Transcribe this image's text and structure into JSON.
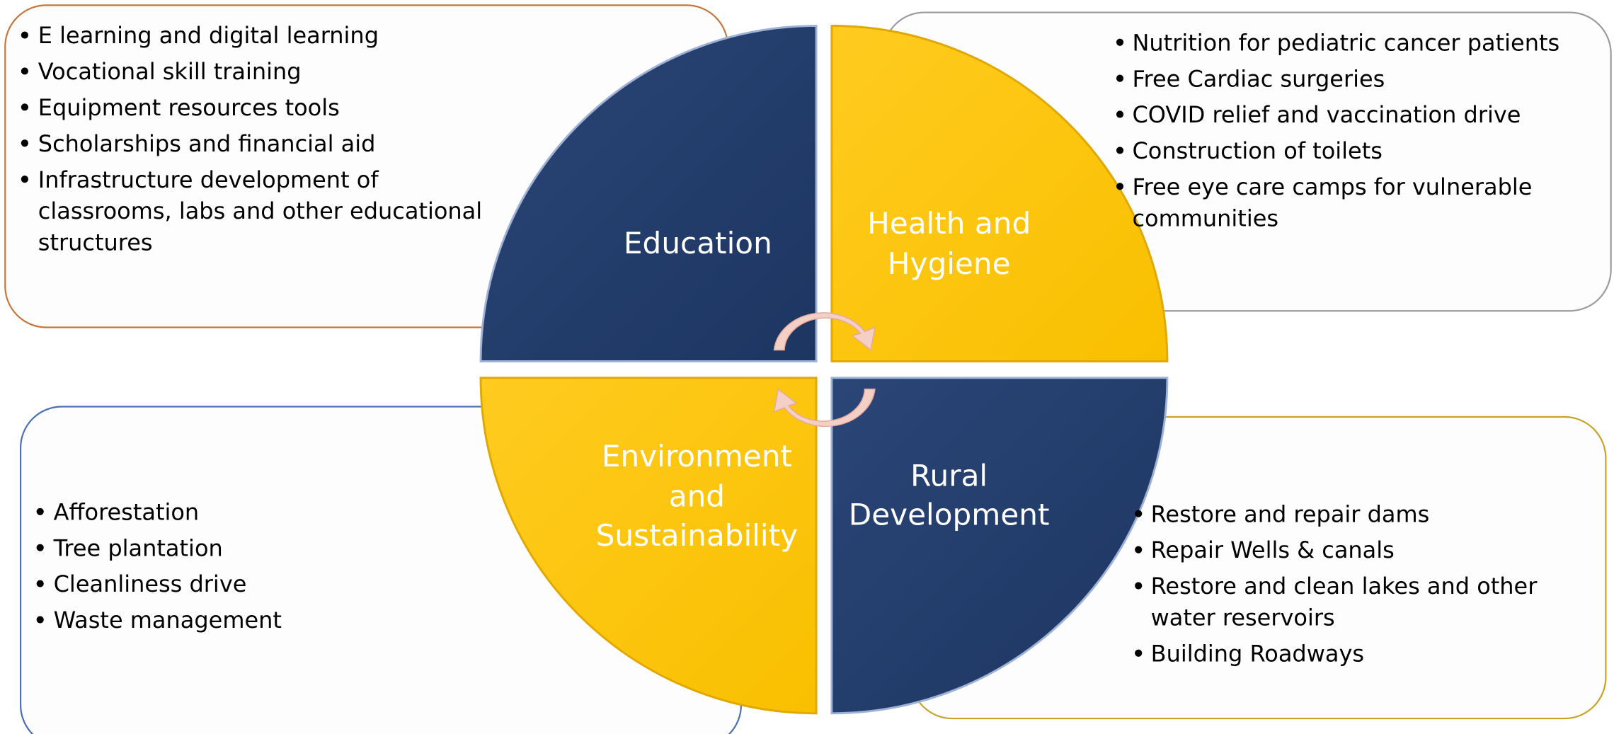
{
  "quadrants": [
    {
      "label": [
        "Education"
      ],
      "bullets": [
        [
          "E learning and digital learning"
        ],
        [
          "Vocational skill training"
        ],
        [
          "Equipment resources tools"
        ],
        [
          "Scholarships and financial aid"
        ],
        [
          "Infrastructure development of",
          "classrooms, labs and other educational",
          "structures"
        ]
      ]
    },
    {
      "label": [
        "Health and",
        "Hygiene"
      ],
      "bullets": [
        [
          "Nutrition for pediatric cancer patients"
        ],
        [
          "Free Cardiac surgeries"
        ],
        [
          "COVID relief and vaccination drive"
        ],
        [
          "Construction of toilets"
        ],
        [
          "Free eye care camps for vulnerable",
          "communities"
        ]
      ]
    },
    {
      "label": [
        "Environment",
        "and",
        "Sustainability"
      ],
      "bullets": [
        [
          "Afforestation"
        ],
        [
          "Tree plantation"
        ],
        [
          "Cleanliness drive"
        ],
        [
          "Waste management"
        ]
      ]
    },
    {
      "label": [
        "Rural",
        "Development"
      ],
      "bullets": [
        [
          "Restore and repair dams"
        ],
        [
          "Repair Wells & canals"
        ],
        [
          "Restore and clean lakes and other",
          "water reservoirs"
        ],
        [
          "Building Roadways"
        ]
      ]
    }
  ]
}
